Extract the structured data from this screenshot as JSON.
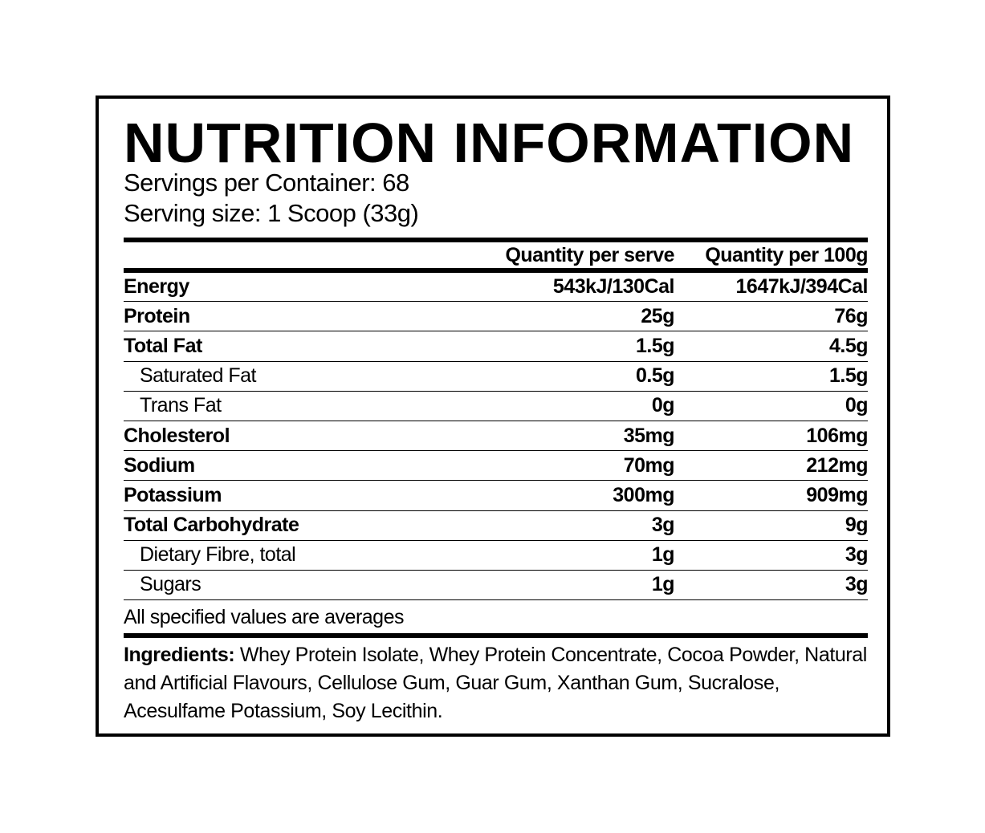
{
  "title": "NUTRITION INFORMATION",
  "servings_per_container": "Servings per Container: 68",
  "serving_size": "Serving size: 1 Scoop (33g)",
  "table": {
    "header": [
      "Quantity per serve",
      "Quantity per 100g"
    ],
    "rows": [
      [
        "Energy",
        "543kJ/130Cal",
        "1647kJ/394Cal"
      ],
      [
        "Protein",
        "25g",
        "76g"
      ],
      [
        "Total Fat",
        "1.5g",
        "4.5g"
      ],
      [
        "Saturated Fat",
        "0.5g",
        "1.5g"
      ],
      [
        "Trans Fat",
        "0g",
        "0g"
      ],
      [
        "Cholesterol",
        "35mg",
        "106mg"
      ],
      [
        "Sodium",
        "70mg",
        "212mg"
      ],
      [
        "Potassium",
        "300mg",
        "909mg"
      ],
      [
        "Total Carbohydrate",
        "3g",
        "9g"
      ],
      [
        "Dietary Fibre, total",
        "1g",
        "3g"
      ],
      [
        "Sugars",
        "1g",
        "3g"
      ]
    ],
    "footnote": "All specified values are averages"
  },
  "ingredients": {
    "label": "Ingredients:",
    "text": "Whey Protein Isolate, Whey Protein Concentrate, Cocoa Powder, Natural and Artificial Flavours, Cellulose Gum, Guar Gum, Xanthan Gum, Sucralose, Acesulfame Potassium, Soy Lecithin."
  }
}
